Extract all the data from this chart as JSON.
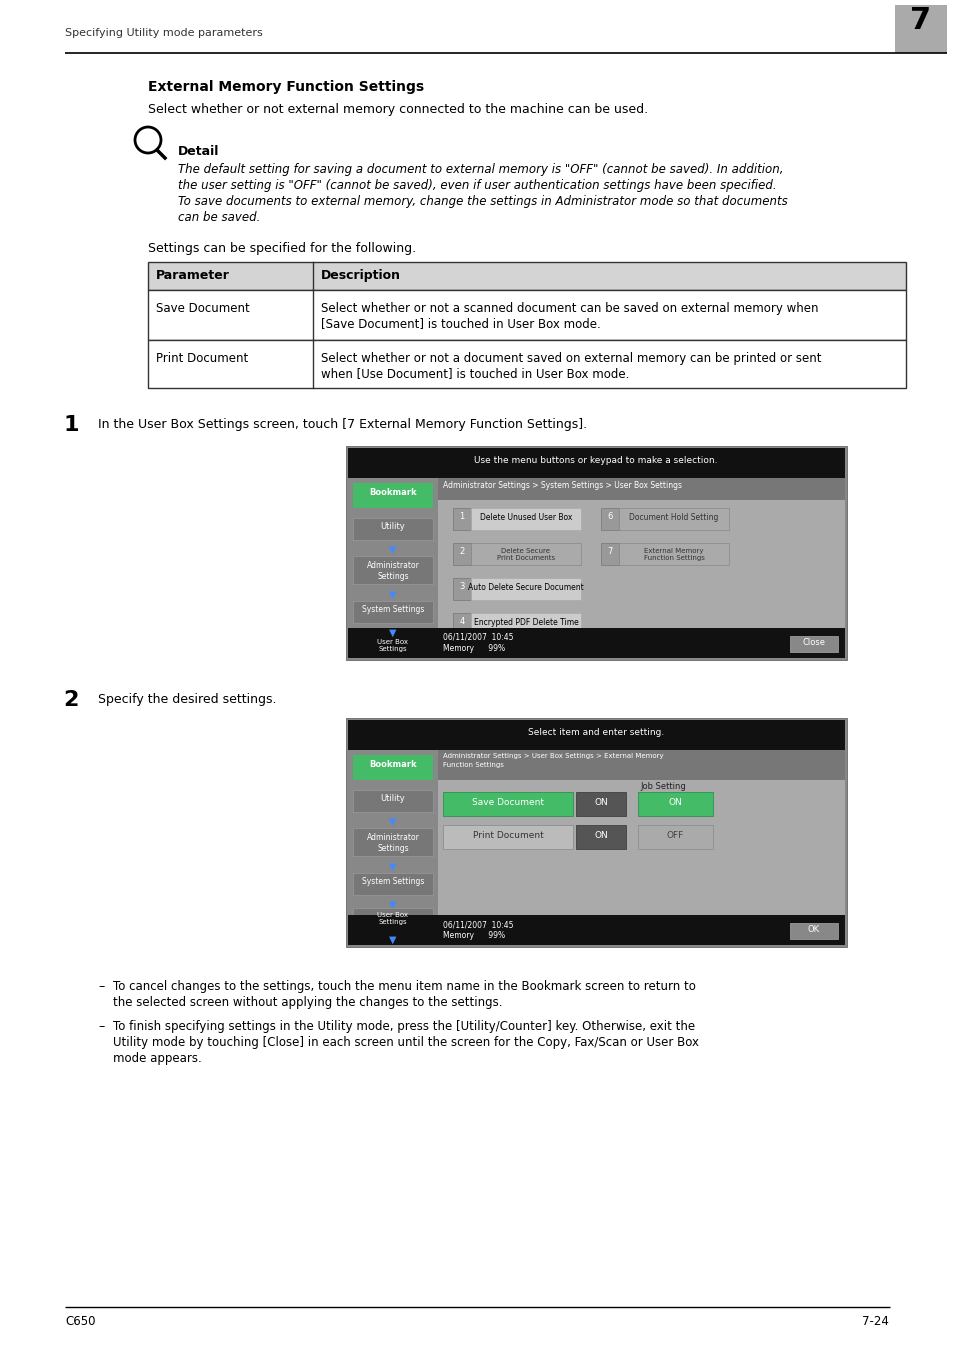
{
  "bg_color": "#ffffff",
  "header_text": "Specifying Utility mode parameters",
  "header_num": "7",
  "title": "External Memory Function Settings",
  "intro": "Select whether or not external memory connected to the machine can be used.",
  "detail_label": "Detail",
  "detail_lines": [
    "The default setting for saving a document to external memory is \"OFF\" (cannot be saved). In addition,",
    "the user setting is \"OFF\" (cannot be saved), even if user authentication settings have been specified.",
    "To save documents to external memory, change the settings in Administrator mode so that documents",
    "can be saved."
  ],
  "settings_intro": "Settings can be specified for the following.",
  "table_header": [
    "Parameter",
    "Description"
  ],
  "table_rows": [
    [
      "Save Document",
      [
        "Select whether or not a scanned document can be saved on external memory when",
        "[Save Document] is touched in User Box mode."
      ]
    ],
    [
      "Print Document",
      [
        "Select whether or not a document saved on external memory can be printed or sent",
        "when [Use Document] is touched in User Box mode."
      ]
    ]
  ],
  "step1_num": "1",
  "step1_text": "In the User Box Settings screen, touch [7 External Memory Function Settings].",
  "step2_num": "2",
  "step2_text": "Specify the desired settings.",
  "bullet1_lines": [
    "To cancel changes to the settings, touch the menu item name in the Bookmark screen to return to",
    "the selected screen without applying the changes to the settings."
  ],
  "bullet2_lines": [
    "To finish specifying settings in the Utility mode, press the [Utility/Counter] key. Otherwise, exit the",
    "Utility mode by touching [Close] in each screen until the screen for the Copy, Fax/Scan or User Box",
    "mode appears."
  ],
  "footer_left": "C650",
  "footer_right": "7-24"
}
